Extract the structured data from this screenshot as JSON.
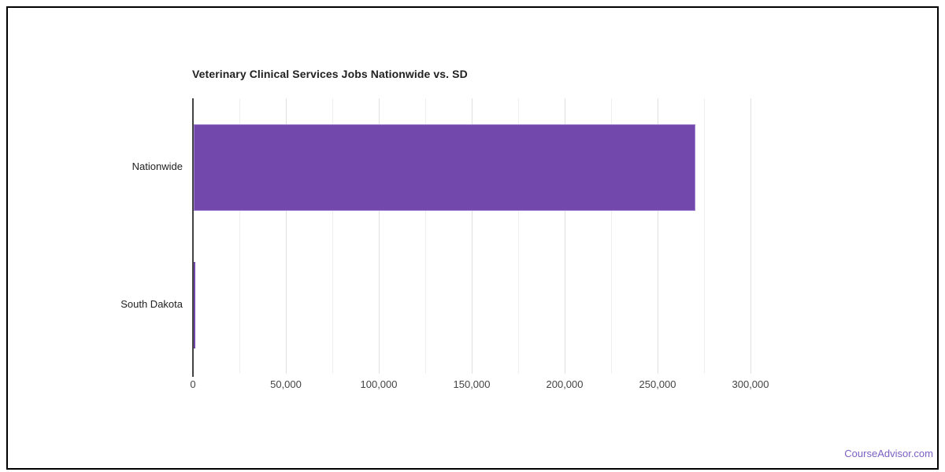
{
  "chart_data": {
    "type": "bar",
    "orientation": "horizontal",
    "title": "Veterinary Clinical Services Jobs Nationwide vs. SD",
    "categories": [
      "Nationwide",
      "South Dakota"
    ],
    "values": [
      270000,
      900
    ],
    "xlabel": "",
    "ylabel": "",
    "xlim": [
      0,
      300000
    ],
    "x_ticks": [
      0,
      50000,
      100000,
      150000,
      200000,
      250000,
      300000
    ],
    "x_tick_labels": [
      "0",
      "50,000",
      "100,000",
      "150,000",
      "200,000",
      "250,000",
      "300,000"
    ],
    "minor_grid_interval": 25000,
    "major_grid_interval": 50000,
    "grid": "on",
    "legend": "none",
    "bar_color": "#7248ad",
    "bar_stroke": "#9d7fce",
    "axis_color": "#424242",
    "major_gridline_color": "#e0e0e0",
    "minor_gridline_color": "#efefef"
  },
  "frame": {
    "border_color": "#000000",
    "background": "#ffffff"
  },
  "footer": {
    "brand": "CourseAdvisor.com",
    "color": "#7b5fc4"
  }
}
